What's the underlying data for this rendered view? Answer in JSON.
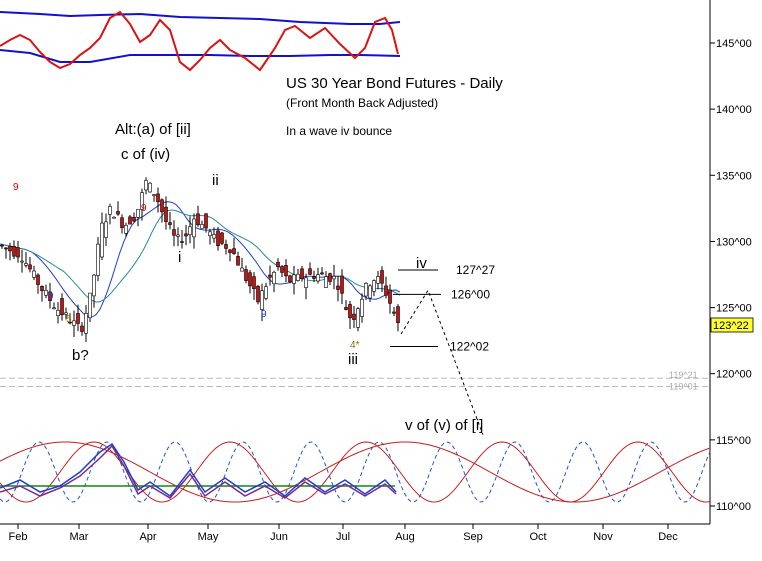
{
  "chart_data": {
    "type": "candlestick",
    "title": "US 30 Year Bond Futures - Daily",
    "subtitle": "(Front Month Back Adjusted)",
    "note": "In a wave iv bounce",
    "y_axis": {
      "side": "right",
      "ticks": [
        "145^00",
        "140^00",
        "135^00",
        "130^00",
        "125^00",
        "120^00",
        "115^00",
        "110^00"
      ],
      "tick_values": [
        145,
        140,
        135,
        130,
        125,
        120,
        115,
        110
      ],
      "current_price_label": "123^22",
      "current_price": 123.69
    },
    "x_axis": {
      "ticks": [
        "Feb",
        "Mar",
        "Apr",
        "May",
        "Jun",
        "Jul",
        "Aug",
        "Sep",
        "Oct",
        "Nov",
        "Dec"
      ]
    },
    "wave_labels": [
      {
        "text": "Alt:(a) of [ii]",
        "date": "Apr-01"
      },
      {
        "text": "c of (iv)",
        "date": "Apr-01"
      },
      {
        "text": "ii",
        "date": "May-05"
      },
      {
        "text": "i",
        "date": "Apr-23"
      },
      {
        "text": "b?",
        "date": "Mar-03"
      },
      {
        "text": "iii",
        "date": "Jul-08"
      },
      {
        "text": "iv",
        "date": "Jul-31"
      },
      {
        "text": "v of (v) of [i]",
        "date": "Sep-01"
      }
    ],
    "count_labels": [
      {
        "text": "9",
        "color": "#cc0000"
      },
      {
        "text": "9",
        "color": "#cc0000"
      },
      {
        "text": "9",
        "color": "#1f3fd0"
      },
      {
        "text": "5",
        "color": "#8a7400"
      },
      {
        "text": "9",
        "color": "#1f3fd0"
      },
      {
        "text": "4*",
        "color": "#8a7400"
      }
    ],
    "price_levels": [
      {
        "label": "127^27",
        "value": 127.84
      },
      {
        "label": "126^00",
        "value": 126.0
      },
      {
        "label": "122^02",
        "value": 122.06
      }
    ],
    "faint_levels": [
      {
        "label": "119^21",
        "value": 119.66
      },
      {
        "label": "119^01",
        "value": 119.03
      }
    ],
    "projected_path": [
      {
        "date": "Jul-25",
        "price": 123.0
      },
      {
        "date": "Aug-05",
        "price": 126.3
      },
      {
        "date": "Aug-31",
        "price": 115.4
      }
    ],
    "colors": {
      "up_candle": "#ffffff",
      "down_candle": "#cc1111",
      "ma_fast": "#1f3fd0",
      "ma_slow": "#2a8c8c",
      "oscillator_top": "#dd1111",
      "band_top": "#1111cc",
      "cycle_sine": "#c81e1e",
      "cycle_dashed": "#2255cc",
      "green_line": "#118811"
    }
  }
}
